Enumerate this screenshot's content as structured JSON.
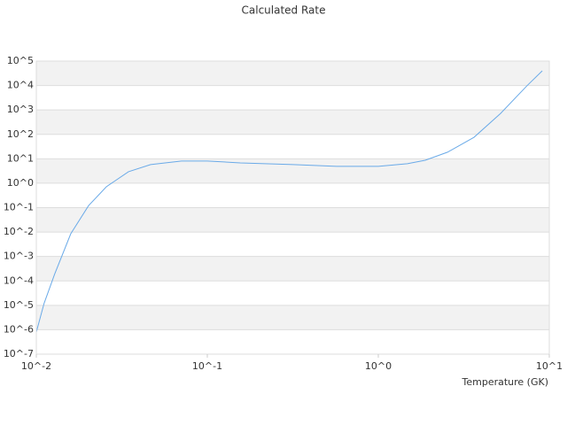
{
  "chart_data": {
    "type": "line",
    "title": "Calculated Rate",
    "x_label": "Temperature (GK)",
    "x": [
      0.01,
      0.0111,
      0.0128,
      0.0159,
      0.0202,
      0.0257,
      0.0346,
      0.0466,
      0.0707,
      0.1,
      0.156,
      0.318,
      0.57,
      1,
      1.48,
      1.88,
      2.54,
      3.63,
      5.19,
      7.41,
      9.1
    ],
    "values": [
      8e-07,
      1.2e-05,
      0.00019,
      0.0085,
      0.12,
      0.72,
      2.96,
      5.8,
      8.1,
      8.1,
      6.8,
      5.8,
      4.9,
      4.9,
      6.3,
      8.7,
      18.6,
      76,
      720,
      9800,
      40000
    ],
    "color": "#6aaae8",
    "xscale": "log",
    "yscale": "log",
    "grid": true,
    "xlim": [
      0.01,
      10
    ],
    "xticks": [
      {
        "value": 0.01,
        "label": "10^-2"
      },
      {
        "value": 0.1,
        "label": "10^-1"
      },
      {
        "value": 1,
        "label": "10^0"
      },
      {
        "value": 10,
        "label": "10^1"
      }
    ],
    "ylim": [
      1e-07,
      100000
    ],
    "yticks": [
      {
        "value": 100000,
        "label": "10^5"
      },
      {
        "value": 10000,
        "label": "10^4"
      },
      {
        "value": 1000,
        "label": "10^3"
      },
      {
        "value": 100,
        "label": "10^2"
      },
      {
        "value": 10,
        "label": "10^1"
      },
      {
        "value": 1,
        "label": "10^0"
      },
      {
        "value": 0.1,
        "label": "10^-1"
      },
      {
        "value": 0.01,
        "label": "10^-2"
      },
      {
        "value": 0.001,
        "label": "10^-3"
      },
      {
        "value": 0.0001,
        "label": "10^-4"
      },
      {
        "value": 1e-05,
        "label": "10^-5"
      },
      {
        "value": 1e-06,
        "label": "10^-6"
      },
      {
        "value": 1e-07,
        "label": "10^-7"
      }
    ]
  }
}
